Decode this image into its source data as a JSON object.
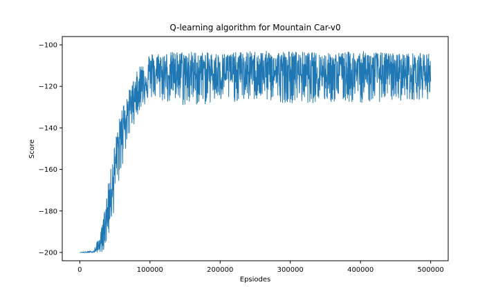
{
  "chart_data": {
    "type": "line",
    "title": "Q-learning algorithm for Mountain Car-v0",
    "xlabel": "Epsiodes",
    "ylabel": "Score",
    "xlim": [
      -25000,
      525000
    ],
    "ylim": [
      -204,
      -96
    ],
    "xticks": [
      0,
      100000,
      200000,
      300000,
      400000,
      500000
    ],
    "xtick_labels": [
      "0",
      "100000",
      "200000",
      "300000",
      "400000",
      "500000"
    ],
    "yticks": [
      -200,
      -180,
      -160,
      -140,
      -120,
      -100
    ],
    "ytick_labels": [
      "−200",
      "−180",
      "−160",
      "−140",
      "−120",
      "−100"
    ],
    "grid": false,
    "series": [
      {
        "name": "Score",
        "color": "#1f77b4",
        "x": [
          0,
          20000,
          30000,
          35000,
          40000,
          45000,
          50000,
          55000,
          60000,
          65000,
          70000,
          75000,
          80000,
          85000,
          90000,
          95000,
          100000,
          150000,
          200000,
          250000,
          300000,
          350000,
          400000,
          450000,
          500000
        ],
        "mean": [
          -200,
          -200,
          -196,
          -190,
          -180,
          -170,
          -160,
          -150,
          -142,
          -136,
          -131,
          -127,
          -124,
          -121,
          -119,
          -117,
          -115,
          -114,
          -114,
          -114,
          -114,
          -114,
          -114,
          -114,
          -114
        ],
        "upper": [
          -200,
          -199,
          -190,
          -180,
          -168,
          -158,
          -147,
          -138,
          -130,
          -126,
          -122,
          -118,
          -114,
          -110,
          -107,
          -105,
          -104,
          -103,
          -104,
          -103,
          -103,
          -104,
          -103,
          -104,
          -104
        ],
        "lower": [
          -200,
          -200,
          -200,
          -199,
          -194,
          -187,
          -178,
          -168,
          -160,
          -152,
          -146,
          -140,
          -136,
          -132,
          -130,
          -128,
          -126,
          -130,
          -128,
          -127,
          -128,
          -128,
          -128,
          -127,
          -126
        ]
      }
    ]
  }
}
